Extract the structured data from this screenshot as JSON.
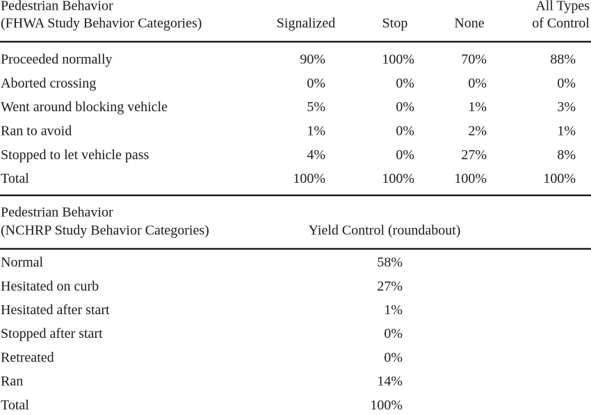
{
  "table1": {
    "stub_header": [
      "Pedestrian Behavior",
      "(FHWA Study Behavior Categories)"
    ],
    "columns": [
      [
        "Signalized"
      ],
      [
        "Stop"
      ],
      [
        "None"
      ],
      [
        "All Types",
        "of Control"
      ]
    ],
    "rows": [
      [
        "Proceeded normally",
        "90%",
        "100%",
        "70%",
        "88%"
      ],
      [
        "Aborted crossing",
        "0%",
        "0%",
        "0%",
        "0%"
      ],
      [
        "Went around blocking vehicle",
        "5%",
        "0%",
        "1%",
        "3%"
      ],
      [
        "Ran to avoid",
        "1%",
        "0%",
        "2%",
        "1%"
      ],
      [
        "Stopped to let vehicle pass",
        "4%",
        "0%",
        "27%",
        "8%"
      ],
      [
        "Total",
        "100%",
        "100%",
        "100%",
        "100%"
      ]
    ]
  },
  "table2": {
    "stub_header": [
      "Pedestrian Behavior",
      "(NCHRP Study Behavior Categories)"
    ],
    "columns": [
      [
        "Yield Control (roundabout)"
      ]
    ],
    "rows": [
      [
        "Normal",
        "58%"
      ],
      [
        "Hesitated on curb",
        "27%"
      ],
      [
        "Hesitated after start",
        "1%"
      ],
      [
        "Stopped after start",
        "0%"
      ],
      [
        "Retreated",
        "0%"
      ],
      [
        "Ran",
        "14%"
      ],
      [
        "Total",
        "100%"
      ]
    ]
  }
}
